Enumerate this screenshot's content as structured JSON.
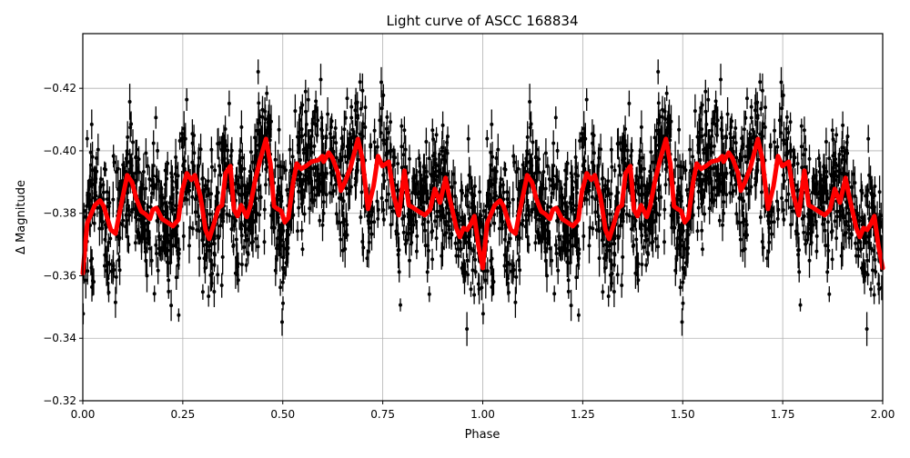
{
  "chart_data": {
    "type": "scatter",
    "title": "Light curve of ASCC 168834",
    "xlabel": "Phase",
    "ylabel": "Δ Magnitude",
    "xlim": [
      0.0,
      2.0
    ],
    "ylim": [
      -0.32,
      -0.4375
    ],
    "y_inverted": true,
    "grid": true,
    "legend": null,
    "x_ticks": [
      "0.00",
      "0.25",
      "0.50",
      "0.75",
      "1.00",
      "1.25",
      "1.50",
      "1.75",
      "2.00"
    ],
    "y_ticks": [
      "−0.42",
      "−0.40",
      "−0.38",
      "−0.36",
      "−0.34",
      "−0.32"
    ],
    "series": [
      {
        "name": "observations",
        "kind": "errorbar",
        "color": "#000000",
        "description": "Dense black points with vertical error bars, phase-folded and repeated over two cycles; scatter spans roughly -0.32 to -0.44"
      },
      {
        "name": "smoothed model",
        "kind": "line",
        "color": "#ff0000",
        "period_repeats": 2,
        "x": [
          0.0,
          0.011,
          0.03,
          0.043,
          0.052,
          0.07,
          0.082,
          0.091,
          0.111,
          0.123,
          0.134,
          0.146,
          0.157,
          0.168,
          0.175,
          0.184,
          0.198,
          0.209,
          0.225,
          0.239,
          0.248,
          0.26,
          0.271,
          0.28,
          0.294,
          0.307,
          0.316,
          0.328,
          0.339,
          0.348,
          0.357,
          0.369,
          0.378,
          0.387,
          0.396,
          0.41,
          0.419,
          0.43,
          0.444,
          0.458,
          0.469,
          0.478,
          0.487,
          0.496,
          0.505,
          0.514,
          0.526,
          0.535,
          0.546,
          0.558,
          0.572,
          0.59,
          0.599,
          0.602,
          0.615,
          0.624,
          0.638,
          0.645,
          0.656,
          0.669,
          0.688,
          0.699,
          0.713,
          0.727,
          0.738,
          0.749,
          0.765,
          0.777,
          0.79,
          0.804,
          0.815,
          0.827,
          0.841,
          0.855,
          0.868,
          0.88,
          0.893,
          0.907,
          0.916,
          0.934,
          0.943,
          0.952,
          0.961,
          0.97,
          0.979,
          0.989,
          1.0
        ],
        "y": [
          -0.3608,
          -0.3768,
          -0.3826,
          -0.3841,
          -0.3823,
          -0.3747,
          -0.3735,
          -0.3797,
          -0.3922,
          -0.3899,
          -0.3846,
          -0.3806,
          -0.3797,
          -0.3782,
          -0.3811,
          -0.3817,
          -0.3782,
          -0.3773,
          -0.3759,
          -0.3779,
          -0.3869,
          -0.3928,
          -0.3907,
          -0.3922,
          -0.3855,
          -0.3747,
          -0.3718,
          -0.3768,
          -0.3817,
          -0.3826,
          -0.3928,
          -0.3951,
          -0.3811,
          -0.3791,
          -0.3826,
          -0.3788,
          -0.3826,
          -0.3901,
          -0.3974,
          -0.4038,
          -0.3959,
          -0.3823,
          -0.3814,
          -0.3808,
          -0.3771,
          -0.3785,
          -0.3901,
          -0.3959,
          -0.3942,
          -0.3951,
          -0.3965,
          -0.3971,
          -0.3983,
          -0.3965,
          -0.3994,
          -0.3977,
          -0.393,
          -0.3872,
          -0.3901,
          -0.3945,
          -0.4038,
          -0.3974,
          -0.3814,
          -0.3887,
          -0.3983,
          -0.3951,
          -0.3965,
          -0.3858,
          -0.3794,
          -0.3936,
          -0.3826,
          -0.3817,
          -0.3805,
          -0.3794,
          -0.3811,
          -0.3878,
          -0.3834,
          -0.3913,
          -0.3855,
          -0.3753,
          -0.3724,
          -0.3753,
          -0.3747,
          -0.3765,
          -0.3791,
          -0.3698,
          -0.3625
        ]
      }
    ]
  }
}
